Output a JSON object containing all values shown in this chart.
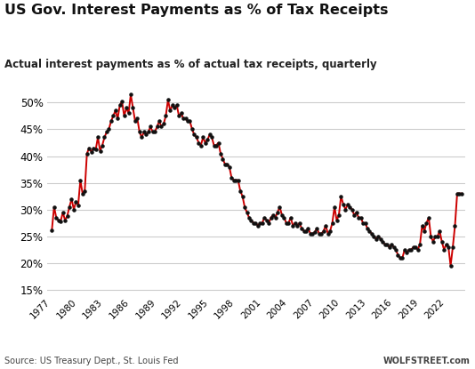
{
  "title": "US Gov. Interest Payments as % of Tax Receipts",
  "subtitle": "Actual interest payments as % of actual tax receipts, quarterly",
  "source_left": "Source: US Treasury Dept., St. Louis Fed",
  "source_right": "WOLFSTREET.com",
  "line_color": "#cc0000",
  "dot_color": "#111111",
  "background_color": "#ffffff",
  "ylim": [
    14,
    54
  ],
  "yticks": [
    15,
    20,
    25,
    30,
    35,
    40,
    45,
    50
  ],
  "grid_color": "#cccccc",
  "xtick_labels": [
    "1977",
    "1980",
    "1983",
    "1986",
    "1989",
    "1992",
    "1995",
    "1998",
    "2001",
    "2004",
    "2007",
    "2010",
    "2013",
    "2016",
    "2019",
    "2022"
  ],
  "data": [
    [
      1977.0,
      26.2
    ],
    [
      1977.25,
      30.5
    ],
    [
      1977.5,
      28.5
    ],
    [
      1977.75,
      28.0
    ],
    [
      1978.0,
      27.8
    ],
    [
      1978.25,
      29.5
    ],
    [
      1978.5,
      28.0
    ],
    [
      1978.75,
      28.8
    ],
    [
      1979.0,
      30.5
    ],
    [
      1979.25,
      32.0
    ],
    [
      1979.5,
      30.0
    ],
    [
      1979.75,
      31.5
    ],
    [
      1980.0,
      30.8
    ],
    [
      1980.25,
      35.5
    ],
    [
      1980.5,
      33.0
    ],
    [
      1980.75,
      33.5
    ],
    [
      1981.0,
      40.5
    ],
    [
      1981.25,
      41.5
    ],
    [
      1981.5,
      40.8
    ],
    [
      1981.75,
      41.5
    ],
    [
      1982.0,
      41.2
    ],
    [
      1982.25,
      43.5
    ],
    [
      1982.5,
      41.0
    ],
    [
      1982.75,
      42.0
    ],
    [
      1983.0,
      43.5
    ],
    [
      1983.25,
      44.5
    ],
    [
      1983.5,
      45.0
    ],
    [
      1983.75,
      46.5
    ],
    [
      1984.0,
      47.5
    ],
    [
      1984.25,
      48.5
    ],
    [
      1984.5,
      47.0
    ],
    [
      1984.75,
      49.5
    ],
    [
      1985.0,
      50.2
    ],
    [
      1985.25,
      47.5
    ],
    [
      1985.5,
      49.0
    ],
    [
      1985.75,
      48.0
    ],
    [
      1986.0,
      51.5
    ],
    [
      1986.25,
      49.0
    ],
    [
      1986.5,
      46.5
    ],
    [
      1986.75,
      47.0
    ],
    [
      1987.0,
      44.5
    ],
    [
      1987.25,
      43.5
    ],
    [
      1987.5,
      44.5
    ],
    [
      1987.75,
      44.0
    ],
    [
      1988.0,
      44.5
    ],
    [
      1988.25,
      45.5
    ],
    [
      1988.5,
      44.5
    ],
    [
      1988.75,
      44.5
    ],
    [
      1989.0,
      45.5
    ],
    [
      1989.25,
      46.5
    ],
    [
      1989.5,
      45.5
    ],
    [
      1989.75,
      46.0
    ],
    [
      1990.0,
      47.5
    ],
    [
      1990.25,
      50.5
    ],
    [
      1990.5,
      48.5
    ],
    [
      1990.75,
      49.5
    ],
    [
      1991.0,
      49.0
    ],
    [
      1991.25,
      49.5
    ],
    [
      1991.5,
      47.5
    ],
    [
      1991.75,
      48.0
    ],
    [
      1992.0,
      47.0
    ],
    [
      1992.25,
      47.0
    ],
    [
      1992.5,
      46.5
    ],
    [
      1992.75,
      46.5
    ],
    [
      1993.0,
      45.0
    ],
    [
      1993.25,
      44.0
    ],
    [
      1993.5,
      43.5
    ],
    [
      1993.75,
      42.5
    ],
    [
      1994.0,
      42.0
    ],
    [
      1994.25,
      43.5
    ],
    [
      1994.5,
      42.5
    ],
    [
      1994.75,
      43.0
    ],
    [
      1995.0,
      44.0
    ],
    [
      1995.25,
      43.5
    ],
    [
      1995.5,
      42.0
    ],
    [
      1995.75,
      42.0
    ],
    [
      1996.0,
      42.5
    ],
    [
      1996.25,
      40.5
    ],
    [
      1996.5,
      39.5
    ],
    [
      1996.75,
      38.5
    ],
    [
      1997.0,
      38.5
    ],
    [
      1997.25,
      38.0
    ],
    [
      1997.5,
      36.0
    ],
    [
      1997.75,
      35.5
    ],
    [
      1998.0,
      35.5
    ],
    [
      1998.25,
      35.5
    ],
    [
      1998.5,
      33.5
    ],
    [
      1998.75,
      32.5
    ],
    [
      1999.0,
      30.5
    ],
    [
      1999.25,
      29.5
    ],
    [
      1999.5,
      28.5
    ],
    [
      1999.75,
      28.0
    ],
    [
      2000.0,
      27.5
    ],
    [
      2000.25,
      27.5
    ],
    [
      2000.5,
      27.0
    ],
    [
      2000.75,
      27.5
    ],
    [
      2001.0,
      27.5
    ],
    [
      2001.25,
      28.5
    ],
    [
      2001.5,
      28.0
    ],
    [
      2001.75,
      27.5
    ],
    [
      2002.0,
      28.5
    ],
    [
      2002.25,
      29.0
    ],
    [
      2002.5,
      28.5
    ],
    [
      2002.75,
      29.5
    ],
    [
      2003.0,
      30.5
    ],
    [
      2003.25,
      29.0
    ],
    [
      2003.5,
      28.5
    ],
    [
      2003.75,
      27.5
    ],
    [
      2004.0,
      27.5
    ],
    [
      2004.25,
      28.5
    ],
    [
      2004.5,
      27.0
    ],
    [
      2004.75,
      27.5
    ],
    [
      2005.0,
      27.0
    ],
    [
      2005.25,
      27.5
    ],
    [
      2005.5,
      26.5
    ],
    [
      2005.75,
      26.0
    ],
    [
      2006.0,
      26.0
    ],
    [
      2006.25,
      26.5
    ],
    [
      2006.5,
      25.5
    ],
    [
      2006.75,
      25.5
    ],
    [
      2007.0,
      25.8
    ],
    [
      2007.25,
      26.5
    ],
    [
      2007.5,
      25.5
    ],
    [
      2007.75,
      25.5
    ],
    [
      2008.0,
      26.0
    ],
    [
      2008.25,
      27.0
    ],
    [
      2008.5,
      25.5
    ],
    [
      2008.75,
      26.0
    ],
    [
      2009.0,
      27.5
    ],
    [
      2009.25,
      30.5
    ],
    [
      2009.5,
      28.0
    ],
    [
      2009.75,
      29.0
    ],
    [
      2010.0,
      32.5
    ],
    [
      2010.25,
      31.0
    ],
    [
      2010.5,
      30.0
    ],
    [
      2010.75,
      31.0
    ],
    [
      2011.0,
      30.5
    ],
    [
      2011.25,
      30.0
    ],
    [
      2011.5,
      29.0
    ],
    [
      2011.75,
      29.5
    ],
    [
      2012.0,
      28.5
    ],
    [
      2012.25,
      28.5
    ],
    [
      2012.5,
      27.5
    ],
    [
      2012.75,
      27.5
    ],
    [
      2013.0,
      26.5
    ],
    [
      2013.25,
      26.0
    ],
    [
      2013.5,
      25.5
    ],
    [
      2013.75,
      25.0
    ],
    [
      2014.0,
      24.5
    ],
    [
      2014.25,
      25.0
    ],
    [
      2014.5,
      24.5
    ],
    [
      2014.75,
      24.0
    ],
    [
      2015.0,
      23.5
    ],
    [
      2015.25,
      23.5
    ],
    [
      2015.5,
      23.0
    ],
    [
      2015.75,
      23.5
    ],
    [
      2016.0,
      23.0
    ],
    [
      2016.25,
      22.5
    ],
    [
      2016.5,
      21.5
    ],
    [
      2016.75,
      21.0
    ],
    [
      2017.0,
      21.0
    ],
    [
      2017.25,
      22.5
    ],
    [
      2017.5,
      22.0
    ],
    [
      2017.75,
      22.5
    ],
    [
      2018.0,
      22.5
    ],
    [
      2018.25,
      23.0
    ],
    [
      2018.5,
      23.0
    ],
    [
      2018.75,
      22.5
    ],
    [
      2019.0,
      23.5
    ],
    [
      2019.25,
      27.0
    ],
    [
      2019.5,
      26.0
    ],
    [
      2019.75,
      27.5
    ],
    [
      2020.0,
      28.5
    ],
    [
      2020.25,
      25.0
    ],
    [
      2020.5,
      24.0
    ],
    [
      2020.75,
      25.0
    ],
    [
      2021.0,
      25.0
    ],
    [
      2021.25,
      26.0
    ],
    [
      2021.5,
      24.0
    ],
    [
      2021.75,
      22.5
    ],
    [
      2022.0,
      23.5
    ],
    [
      2022.25,
      23.0
    ],
    [
      2022.5,
      19.5
    ],
    [
      2022.75,
      23.0
    ],
    [
      2023.0,
      27.0
    ],
    [
      2023.25,
      33.0
    ],
    [
      2023.5,
      33.0
    ],
    [
      2023.75,
      33.0
    ]
  ]
}
